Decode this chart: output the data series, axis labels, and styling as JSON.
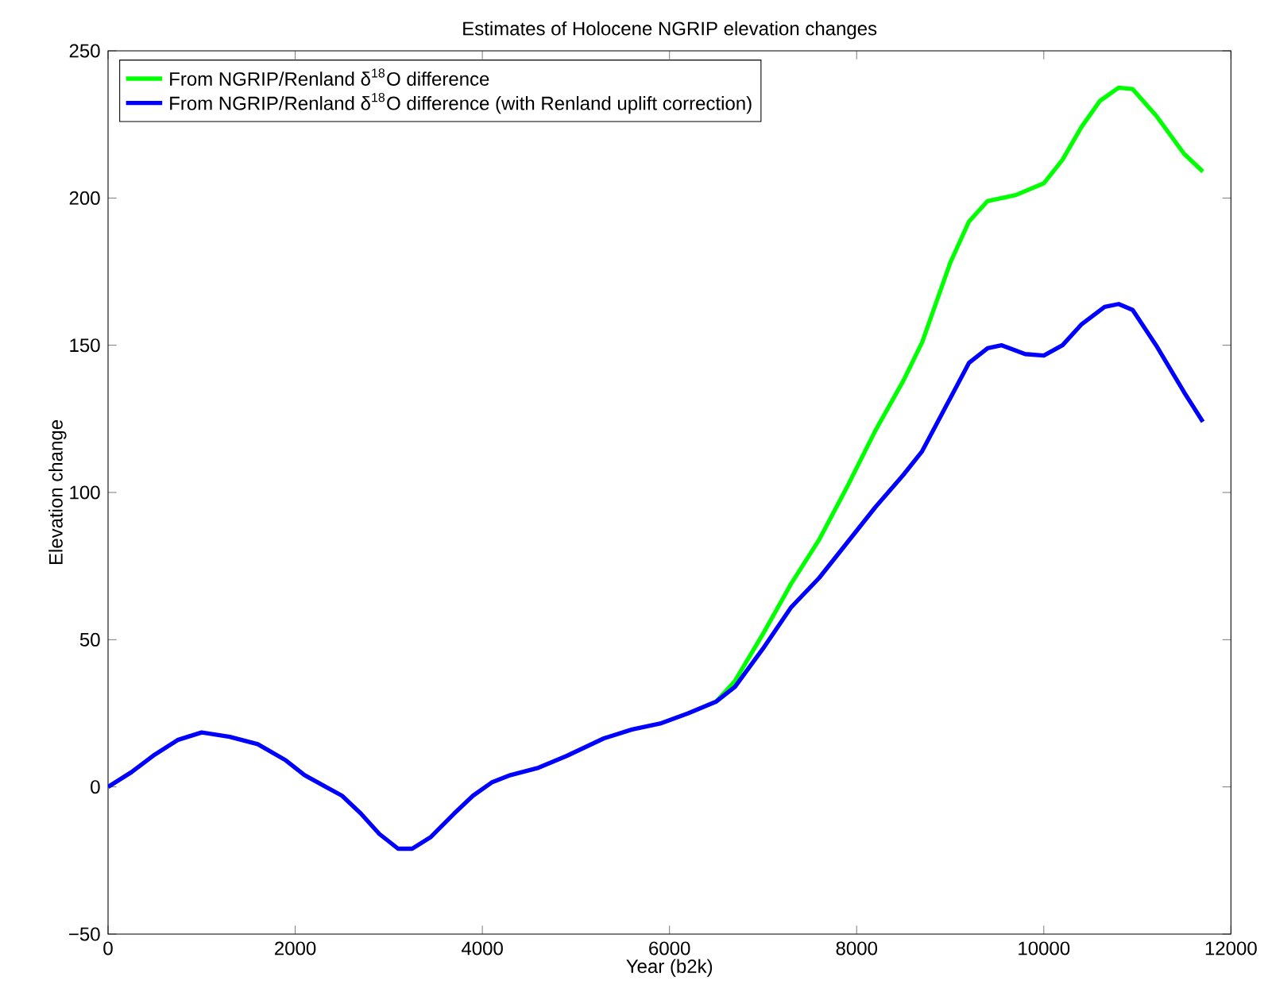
{
  "chart_data": {
    "type": "line",
    "title": "Estimates of Holocene NGRIP elevation changes",
    "xlabel": "Year (b2k)",
    "ylabel": "Elevation change",
    "xlim": [
      0,
      12000
    ],
    "ylim": [
      -50,
      250
    ],
    "xticks": [
      0,
      2000,
      4000,
      6000,
      8000,
      10000,
      12000
    ],
    "yticks": [
      {
        "value": -50,
        "label": "−50"
      },
      0,
      50,
      100,
      150,
      200,
      250
    ],
    "legend": "top left",
    "series": [
      {
        "name": "From NGRIP/Renland δ$^{18}$O difference",
        "color": "#00ff00",
        "x": [
          6500,
          6700,
          7000,
          7300,
          7600,
          7900,
          8200,
          8500,
          8700,
          9000,
          9200,
          9400,
          9700,
          10000,
          10200,
          10400,
          10600,
          10800,
          10950,
          11200,
          11500,
          11700
        ],
        "values": [
          29,
          36,
          52,
          69,
          84,
          102,
          121,
          138,
          151,
          178,
          192,
          199,
          201,
          205,
          213,
          224,
          233,
          237.5,
          237,
          228,
          215,
          209
        ]
      },
      {
        "name": "From NGRIP/Renland δ$^{18}$O difference (with Renland uplift correction)",
        "color": "#0000ff",
        "x": [
          0,
          250,
          500,
          750,
          1000,
          1300,
          1600,
          1900,
          2100,
          2300,
          2500,
          2700,
          2900,
          3100,
          3250,
          3450,
          3700,
          3900,
          4100,
          4300,
          4600,
          4900,
          5300,
          5600,
          5900,
          6200,
          6500,
          6700,
          7000,
          7300,
          7600,
          7900,
          8200,
          8500,
          8700,
          9000,
          9200,
          9400,
          9550,
          9800,
          10000,
          10200,
          10400,
          10650,
          10800,
          10950,
          11200,
          11500,
          11700
        ],
        "values": [
          0,
          5,
          11,
          16,
          18.5,
          17,
          14.5,
          9,
          4,
          0.5,
          -3,
          -9,
          -16,
          -21,
          -21,
          -17,
          -9,
          -3,
          1.5,
          4,
          6.5,
          10.5,
          16.5,
          19.5,
          21.5,
          25,
          29,
          34,
          47,
          61,
          71,
          83,
          95,
          106,
          114,
          132,
          144,
          149,
          150,
          147,
          146.5,
          150,
          157,
          163,
          164,
          162,
          150,
          134,
          124
        ]
      }
    ]
  }
}
